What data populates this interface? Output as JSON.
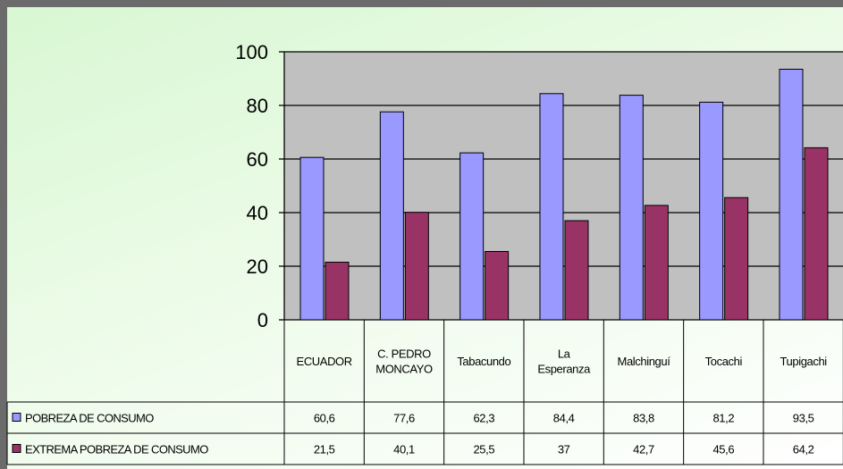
{
  "chart_data": {
    "type": "bar",
    "categories": [
      [
        "ECUADOR"
      ],
      [
        "C. PEDRO",
        "MONCAYO"
      ],
      [
        "Tabacundo"
      ],
      [
        "La",
        "Esperanza"
      ],
      [
        "Malchinguí"
      ],
      [
        "Tocachi"
      ],
      [
        "Tupigachi"
      ]
    ],
    "series": [
      {
        "name": "POBREZA DE CONSUMO",
        "values": [
          60.6,
          77.6,
          62.3,
          84.4,
          83.8,
          81.2,
          93.5
        ],
        "labels": [
          "60,6",
          "77,6",
          "62,3",
          "84,4",
          "83,8",
          "81,2",
          "93,5"
        ],
        "color": "#9999ff"
      },
      {
        "name": "EXTREMA POBREZA DE CONSUMO",
        "values": [
          21.5,
          40.1,
          25.5,
          37,
          42.7,
          45.6,
          64.2
        ],
        "labels": [
          "21,5",
          "40,1",
          "25,5",
          "37",
          "42,7",
          "45,6",
          "64,2"
        ],
        "color": "#993366"
      }
    ],
    "yticks": [
      "0",
      "20",
      "40",
      "60",
      "80",
      "100"
    ],
    "ylim": [
      0,
      100
    ],
    "grid": true,
    "plot_background": "#c0c0c0",
    "legend": "data-table"
  }
}
